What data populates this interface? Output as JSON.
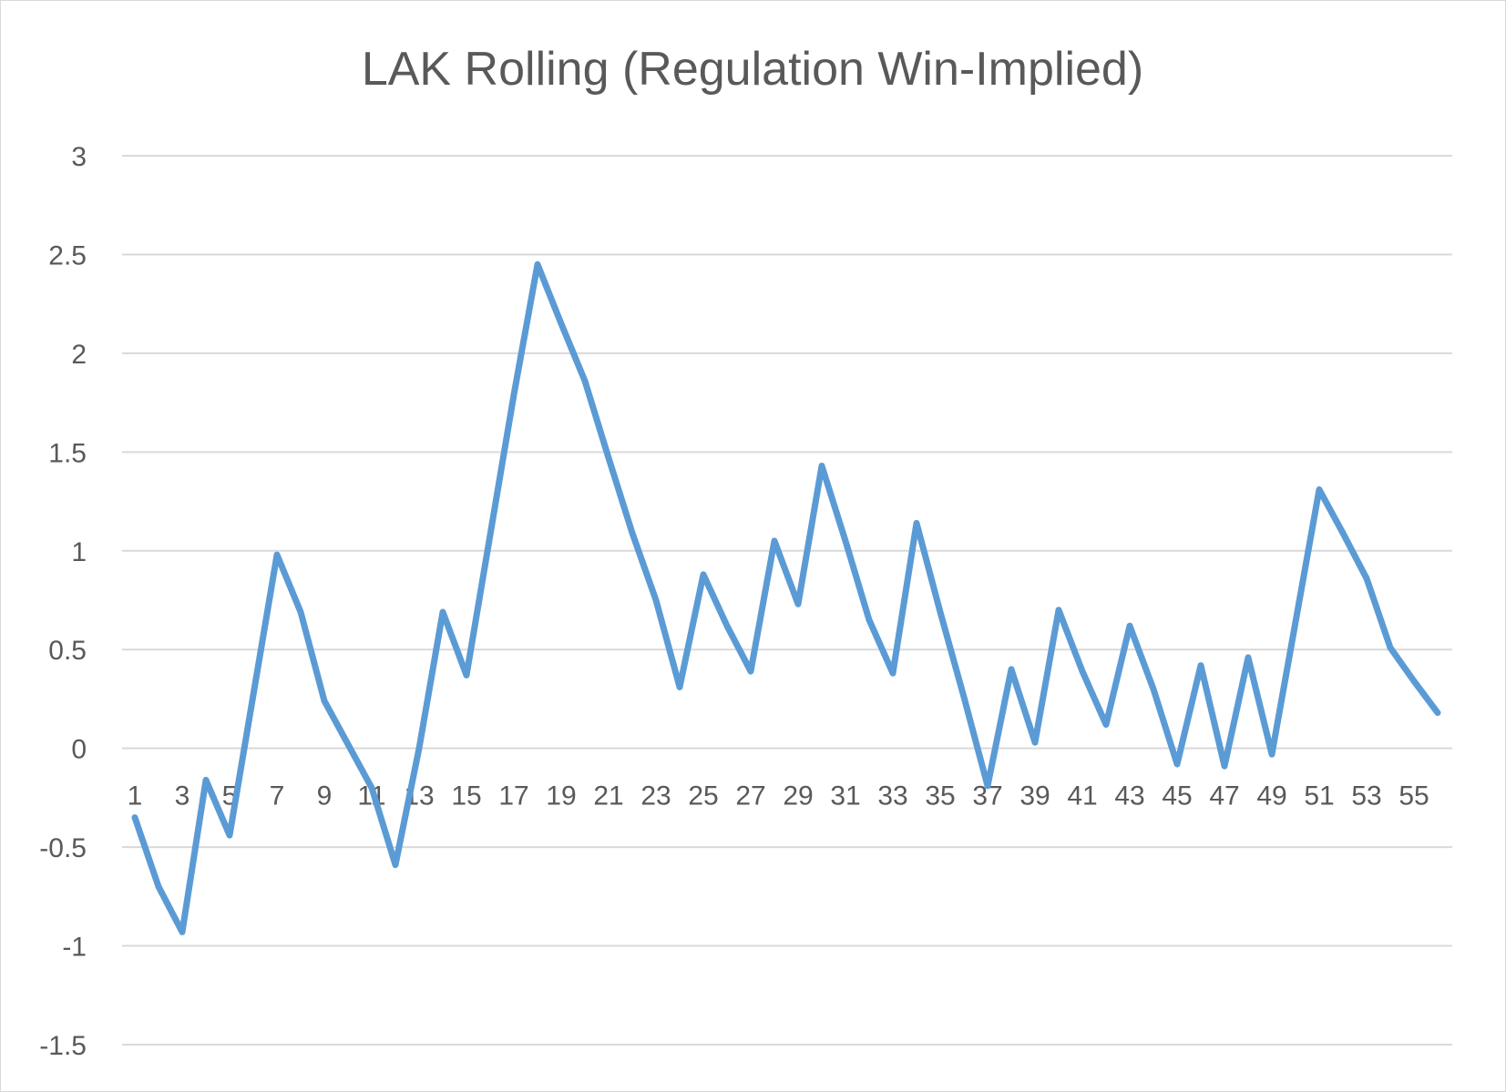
{
  "chart_data": {
    "type": "line",
    "title": "LAK Rolling (Regulation Win-Implied)",
    "xlabel": "",
    "ylabel": "",
    "ylim": [
      -1.5,
      3
    ],
    "y_ticks": [
      "3",
      "2.5",
      "2",
      "1.5",
      "1",
      "0.5",
      "0",
      "-0.5",
      "-1",
      "-1.5"
    ],
    "x_tick_labels": [
      "1",
      "3",
      "5",
      "7",
      "9",
      "11",
      "13",
      "15",
      "17",
      "19",
      "21",
      "23",
      "25",
      "27",
      "29",
      "31",
      "33",
      "35",
      "37",
      "39",
      "41",
      "43",
      "45",
      "47",
      "49",
      "51",
      "53",
      "55"
    ],
    "grid": true,
    "series_color": "#5b9bd5",
    "x": [
      1,
      2,
      3,
      4,
      5,
      6,
      7,
      8,
      9,
      10,
      11,
      12,
      13,
      14,
      15,
      16,
      17,
      18,
      19,
      20,
      21,
      22,
      23,
      24,
      25,
      26,
      27,
      28,
      29,
      30,
      31,
      32,
      33,
      34,
      35,
      36,
      37,
      38,
      39,
      40,
      41,
      42,
      43,
      44,
      45,
      46,
      47,
      48,
      49,
      50,
      51,
      52,
      53,
      54,
      55,
      56
    ],
    "values": [
      -0.35,
      -0.7,
      -0.93,
      -0.16,
      -0.44,
      0.27,
      0.98,
      0.69,
      0.24,
      0.02,
      -0.2,
      -0.59,
      0.0,
      0.69,
      0.37,
      1.08,
      1.79,
      2.45,
      2.15,
      1.86,
      1.47,
      1.09,
      0.75,
      0.31,
      0.88,
      0.62,
      0.39,
      1.05,
      0.73,
      1.43,
      1.05,
      0.65,
      0.38,
      1.14,
      0.69,
      0.26,
      -0.19,
      0.4,
      0.03,
      0.7,
      0.39,
      0.12,
      0.62,
      0.3,
      -0.08,
      0.42,
      -0.09,
      0.46,
      -0.03,
      0.64,
      1.31,
      1.09,
      0.86,
      0.51,
      0.34,
      0.18
    ]
  }
}
